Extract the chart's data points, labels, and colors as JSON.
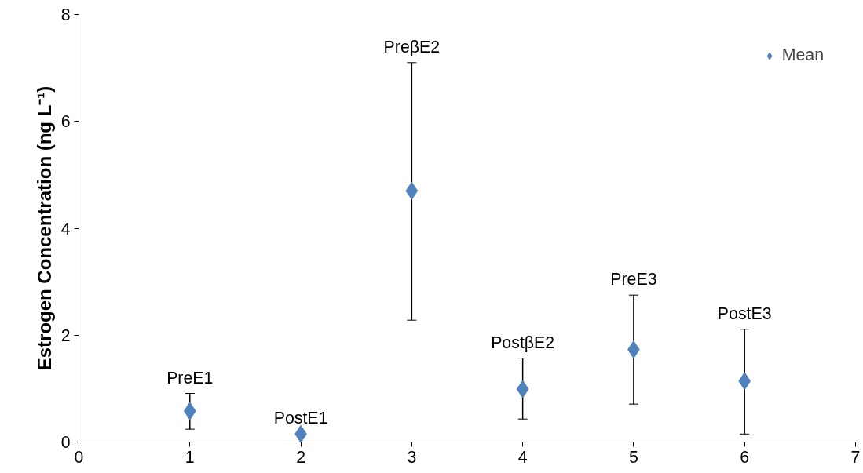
{
  "chart_data": {
    "type": "scatter",
    "ylabel": "Estrogen Concentration (ng L⁻¹)",
    "x": [
      1,
      2,
      3,
      4,
      5,
      6
    ],
    "series": [
      {
        "name": "Mean",
        "color": "#4f81bd",
        "values": [
          0.58,
          0.15,
          4.7,
          0.99,
          1.73,
          1.14
        ],
        "errors": [
          [
            0.24,
            0.91
          ],
          null,
          [
            2.28,
            7.1
          ],
          [
            0.43,
            1.57
          ],
          [
            0.71,
            2.75
          ],
          [
            0.15,
            2.11
          ]
        ]
      }
    ],
    "xlim": [
      0,
      7
    ],
    "xticks": [
      0,
      1,
      2,
      3,
      4,
      5,
      6,
      7
    ],
    "ylim": [
      0,
      8
    ],
    "yticks": [
      0,
      2,
      4,
      6,
      8
    ],
    "annotations": [
      {
        "text": "PreE1",
        "x": 1,
        "y": 0.91
      },
      {
        "text": "PostE1",
        "x": 2,
        "y": 0.15
      },
      {
        "text": "PreβE2",
        "x": 3,
        "y": 7.1
      },
      {
        "text": "PostβE2",
        "x": 4,
        "y": 1.57
      },
      {
        "text": "PreE3",
        "x": 5,
        "y": 2.75
      },
      {
        "text": "PostE3",
        "x": 6,
        "y": 2.11
      }
    ],
    "marker": "diamond",
    "grid": false,
    "legend": "top right"
  }
}
